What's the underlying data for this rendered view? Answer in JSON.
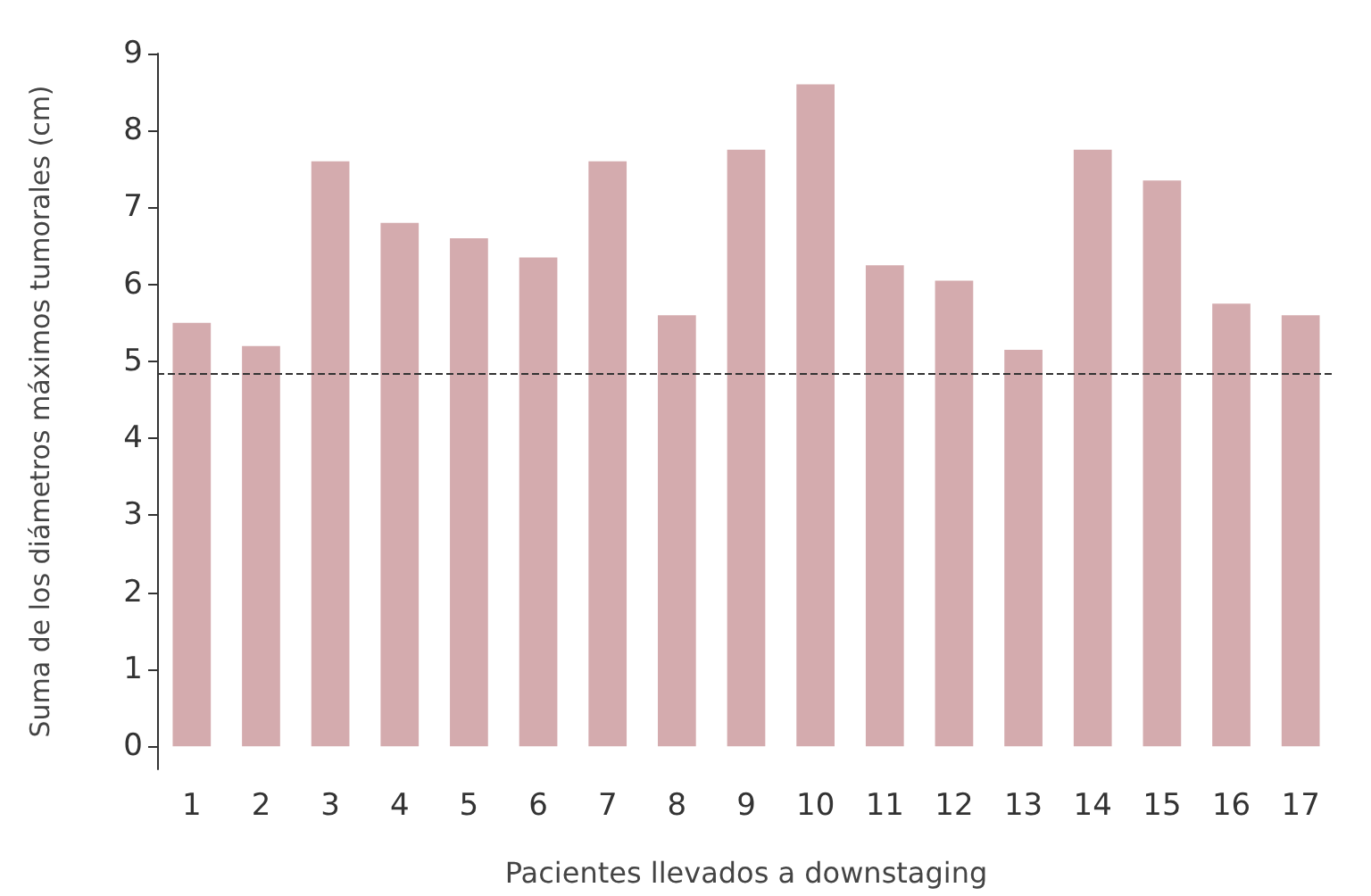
{
  "chart_data": {
    "type": "bar",
    "xlabel": "Pacientes llevados a downstaging",
    "ylabel": "Suma de los diámetros máximos tumorales (cm)",
    "categories": [
      "1",
      "2",
      "3",
      "4",
      "5",
      "6",
      "7",
      "8",
      "9",
      "10",
      "11",
      "12",
      "13",
      "14",
      "15",
      "16",
      "17"
    ],
    "values": [
      5.5,
      5.2,
      7.6,
      6.8,
      6.6,
      6.35,
      7.6,
      5.6,
      7.75,
      8.6,
      6.25,
      6.05,
      5.15,
      7.75,
      7.35,
      5.75,
      5.6
    ],
    "color": "#d4abae",
    "ylim": [
      -0.3,
      9
    ],
    "yticks": [
      0,
      1,
      2,
      3,
      4,
      5,
      6,
      7,
      8,
      9
    ],
    "grid": false,
    "ref_lines": [
      {
        "axis": "y",
        "value": 4.85,
        "color": "#333333",
        "line_style": "dashed"
      }
    ]
  }
}
